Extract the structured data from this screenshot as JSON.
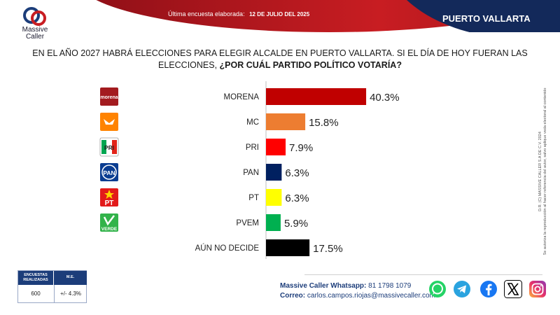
{
  "header": {
    "survey_label": "Última encuesta elaborada:",
    "survey_date": "12 DE JULIO DEL 2025",
    "city": "PUERTO VALLARTA",
    "brand": "Massive Caller"
  },
  "question": {
    "line1": "EN EL AÑO 2027 HABRÁ ELECCIONES PARA ELEGIR ALCALDE EN PUERTO VALLARTA. SI EL DÍA DE HOY FUERAN LAS",
    "line2_plain": "ELECCIONES, ",
    "line2_bold": "¿POR CUÁL PARTIDO POLÍTICO VOTARÍA?"
  },
  "chart_data": {
    "type": "bar",
    "orientation": "horizontal",
    "categories": [
      "MORENA",
      "MC",
      "PRI",
      "PAN",
      "PT",
      "PVEM",
      "AÚN NO DECIDE"
    ],
    "values": [
      40.3,
      15.8,
      7.9,
      6.3,
      6.3,
      5.9,
      17.5
    ],
    "value_labels": [
      "40.3%",
      "15.8%",
      "7.9%",
      "6.3%",
      "6.3%",
      "5.9%",
      "17.5%"
    ],
    "colors": [
      "#c00000",
      "#ed7d31",
      "#ff0000",
      "#002060",
      "#ffff00",
      "#00b050",
      "#000000"
    ],
    "logo_texts": [
      "morena",
      "",
      "PRI",
      "PAN",
      "PT",
      "VERDE",
      ""
    ],
    "logo_icons": [
      "morena-logo-icon",
      "mc-logo-icon",
      "pri-logo-icon",
      "pan-logo-icon",
      "pt-logo-icon",
      "pvem-logo-icon",
      ""
    ],
    "grid": false
  },
  "stats": {
    "header_surveys": "ENCUESTAS REALIZADAS",
    "header_me": "M.E.",
    "surveys": "600",
    "me": "+/- 4.3%"
  },
  "contact": {
    "whatsapp_label": "Massive Caller Whatsapp:",
    "whatsapp_number": "81 1798 1079",
    "email_label": "Correo:",
    "email": "carlos.campos.riojas@massivecaller.com"
  },
  "legal": {
    "line1": "D.R. (C) MASSIVE CALLER S.A DE C.V. 2024",
    "line2": "Se autoriza la reproducción al hacer referencia del autor, salvo aplique veda electoral al contenido"
  },
  "social_icons": [
    "whatsapp-icon",
    "telegram-icon",
    "facebook-icon",
    "x-icon",
    "instagram-icon"
  ]
}
